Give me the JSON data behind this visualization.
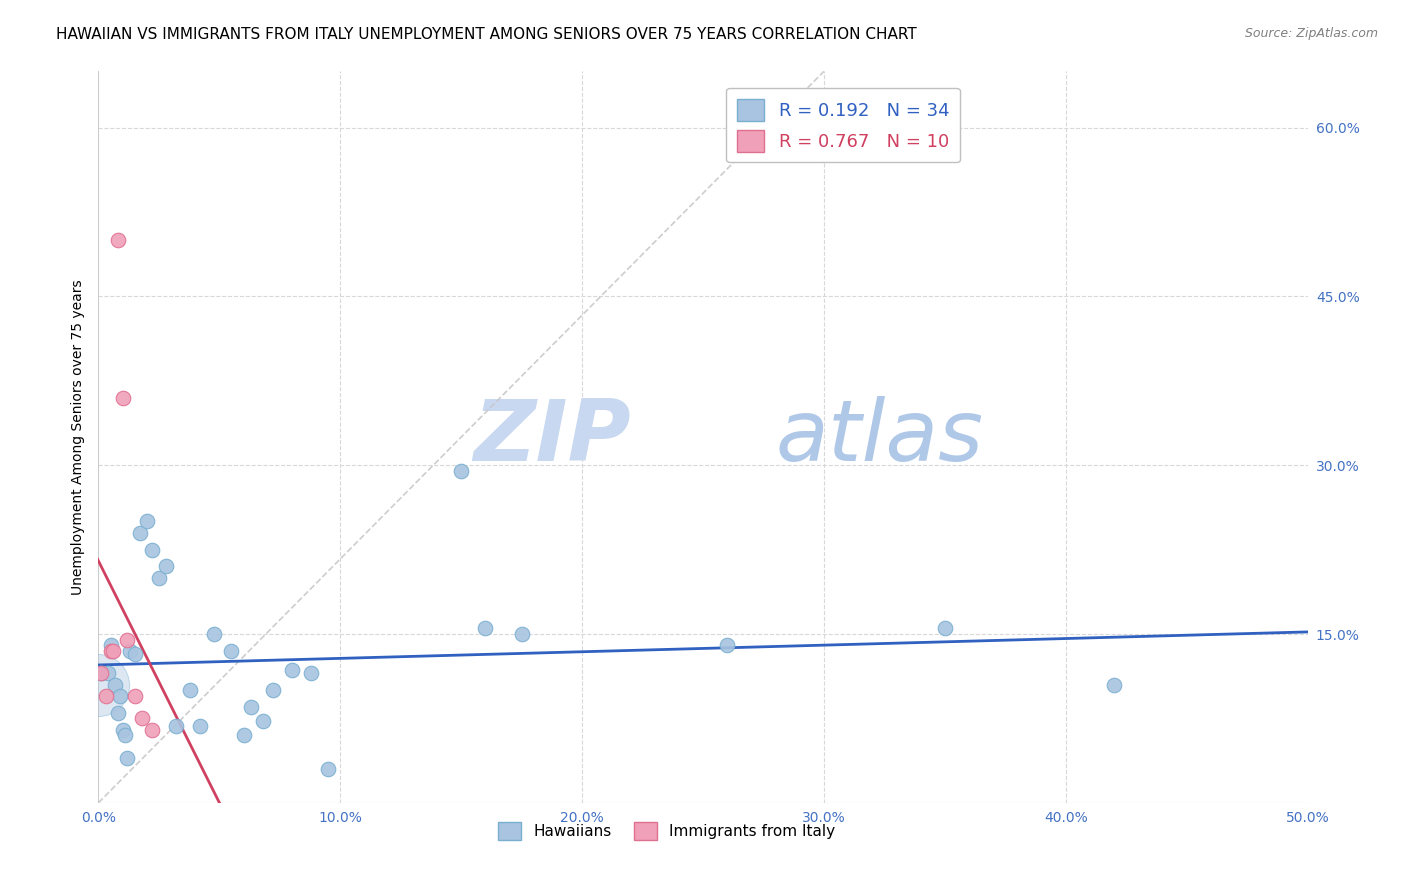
{
  "title": "HAWAIIAN VS IMMIGRANTS FROM ITALY UNEMPLOYMENT AMONG SENIORS OVER 75 YEARS CORRELATION CHART",
  "source": "Source: ZipAtlas.com",
  "ylabel": "Unemployment Among Seniors over 75 years",
  "xlim": [
    0.0,
    0.5
  ],
  "ylim": [
    0.0,
    0.65
  ],
  "xticks": [
    0.0,
    0.1,
    0.2,
    0.3,
    0.4,
    0.5
  ],
  "xticklabels": [
    "0.0%",
    "10.0%",
    "20.0%",
    "30.0%",
    "40.0%",
    "50.0%"
  ],
  "yticks": [
    0.0,
    0.15,
    0.3,
    0.45,
    0.6
  ],
  "yticklabels": [
    "",
    "15.0%",
    "30.0%",
    "45.0%",
    "60.0%"
  ],
  "hawaiians_x": [
    0.001,
    0.004,
    0.005,
    0.007,
    0.008,
    0.009,
    0.01,
    0.011,
    0.012,
    0.013,
    0.015,
    0.017,
    0.02,
    0.022,
    0.025,
    0.028,
    0.032,
    0.038,
    0.042,
    0.048,
    0.055,
    0.06,
    0.063,
    0.068,
    0.072,
    0.08,
    0.088,
    0.095,
    0.15,
    0.16,
    0.175,
    0.26,
    0.35,
    0.42
  ],
  "hawaiians_y": [
    0.115,
    0.115,
    0.14,
    0.105,
    0.08,
    0.095,
    0.065,
    0.06,
    0.04,
    0.135,
    0.132,
    0.24,
    0.25,
    0.225,
    0.2,
    0.21,
    0.068,
    0.1,
    0.068,
    0.15,
    0.135,
    0.06,
    0.085,
    0.073,
    0.1,
    0.118,
    0.115,
    0.03,
    0.295,
    0.155,
    0.15,
    0.14,
    0.155,
    0.105
  ],
  "italians_x": [
    0.001,
    0.003,
    0.005,
    0.006,
    0.008,
    0.01,
    0.012,
    0.015,
    0.018,
    0.022
  ],
  "italians_y": [
    0.115,
    0.095,
    0.135,
    0.135,
    0.5,
    0.36,
    0.145,
    0.095,
    0.075,
    0.065
  ],
  "hawaiians_color": "#a8c4e0",
  "italians_color": "#f0a0b8",
  "hawaiians_edge": "#7aafd0",
  "italians_edge": "#e07090",
  "blue_line_color": "#3060c0",
  "pink_line_color": "#d04060",
  "ref_line_color": "#c8c8c8",
  "R_hawaiians": 0.192,
  "N_hawaiians": 34,
  "R_italians": 0.767,
  "N_italians": 10,
  "watermark_zip": "ZIP",
  "watermark_atlas": "atlas",
  "watermark_color_zip": "#c8d8f0",
  "watermark_color_atlas": "#b0c8e8",
  "legend_labels": [
    "Hawaiians",
    "Immigrants from Italy"
  ],
  "title_fontsize": 11,
  "axis_label_fontsize": 10,
  "tick_fontsize": 10,
  "tick_color": "#4472c4",
  "source_color": "#808080"
}
